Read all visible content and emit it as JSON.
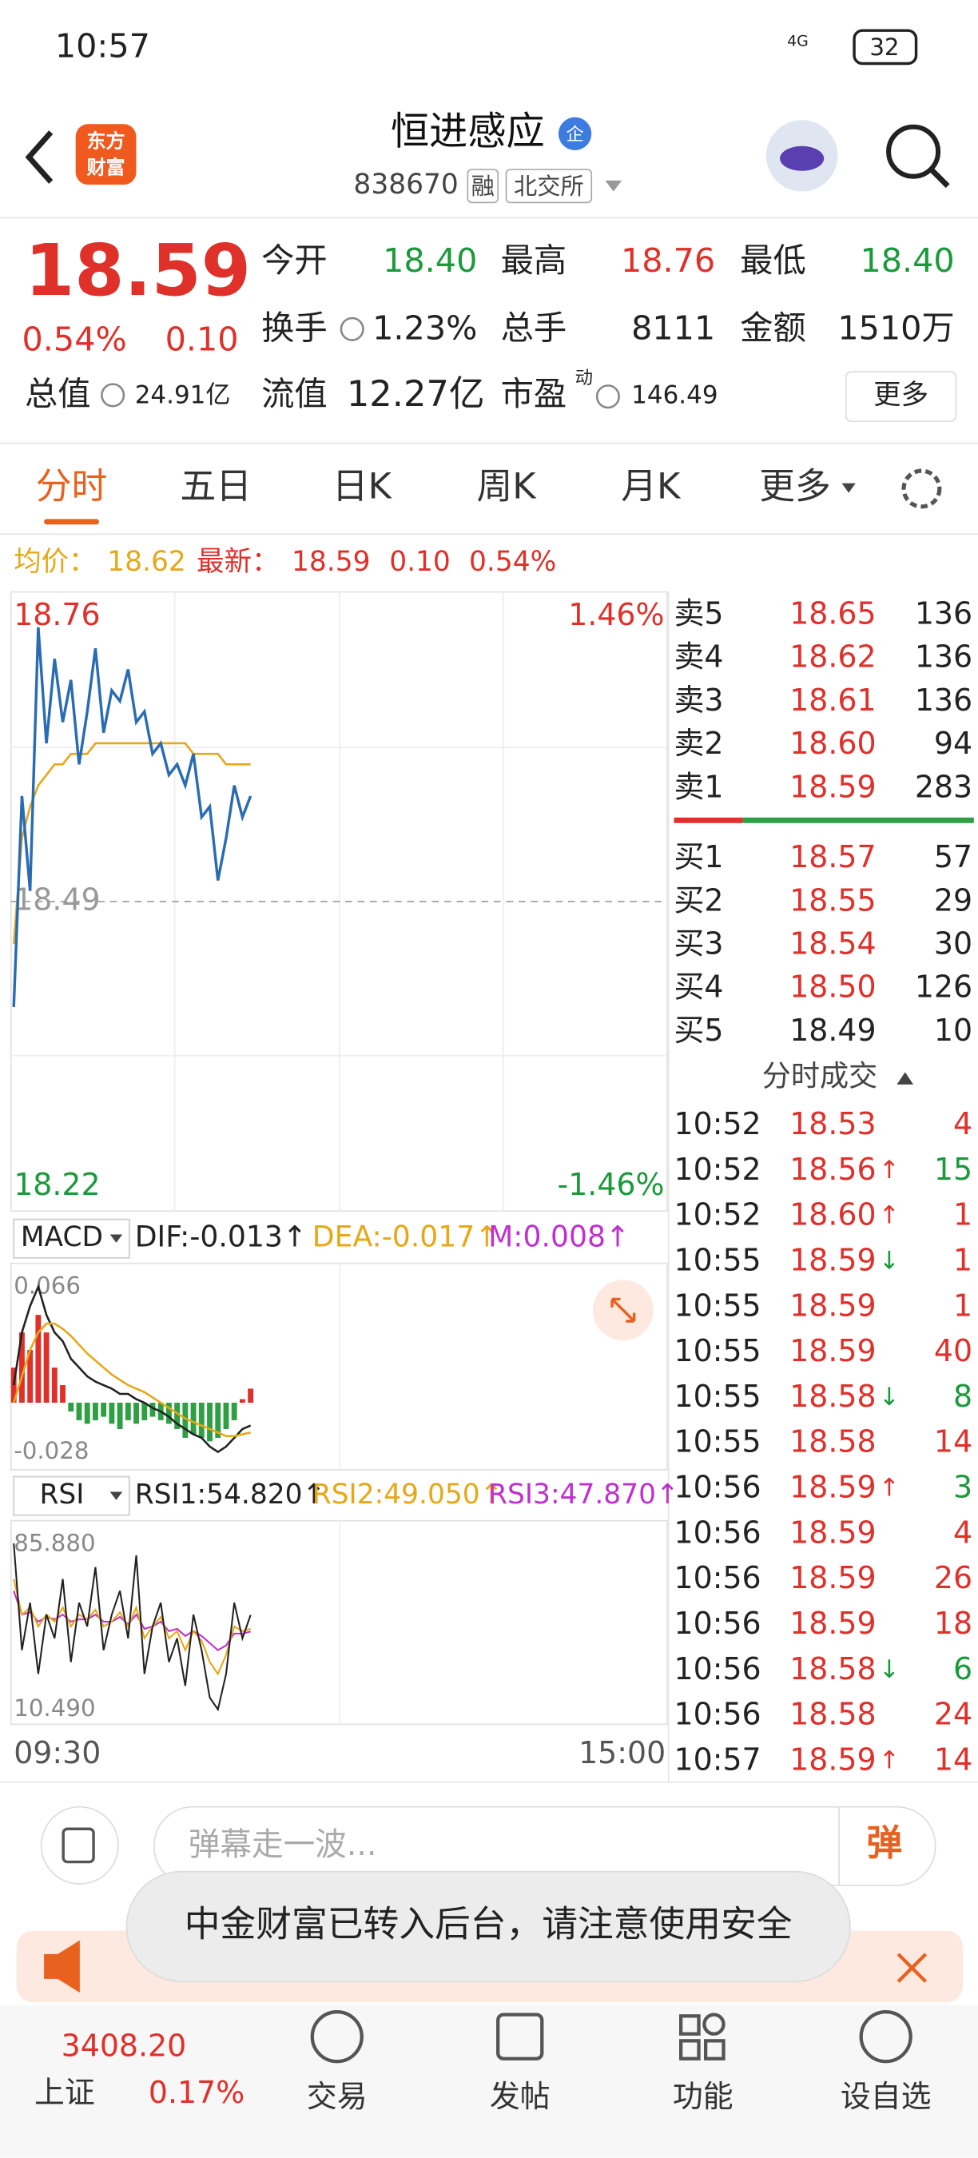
{
  "status_bar": {
    "time": "10:57",
    "network": "4G",
    "battery": "32"
  },
  "header": {
    "logo": [
      "东方",
      "财富"
    ],
    "name": "恒进感应",
    "badge": "企",
    "code": "838670",
    "tags": [
      "融",
      "北交所"
    ]
  },
  "quote": {
    "price": "18.59",
    "change_pct": "0.54%",
    "change": "0.10",
    "row1": [
      {
        "label": "今开",
        "value": "18.40",
        "color": "green"
      },
      {
        "label": "最高",
        "value": "18.76",
        "color": "red"
      },
      {
        "label": "最低",
        "value": "18.40",
        "color": "green"
      }
    ],
    "row2": [
      {
        "label": "换手",
        "value": "1.23%"
      },
      {
        "label": "总手",
        "value": "8111"
      },
      {
        "label": "金额",
        "value": "1510万"
      }
    ],
    "row3": [
      {
        "label": "总值",
        "value": "24.91亿"
      },
      {
        "label": "流值",
        "value": "12.27亿"
      },
      {
        "label": "市盈",
        "sup": "动",
        "value": "146.49"
      }
    ],
    "more": "更多"
  },
  "tabs": {
    "items": [
      "分时",
      "五日",
      "日K",
      "周K",
      "月K",
      "更多"
    ],
    "active": 0
  },
  "summary": {
    "avg_label": "均价：",
    "avg": "18.62",
    "last_label": "最新：",
    "last": "18.59",
    "change": "0.10",
    "change_pct": "0.54%"
  },
  "intraday": {
    "high": "18.76",
    "low": "18.22",
    "prev_close": "18.49",
    "up_pct": "1.46%",
    "down_pct": "-1.46%",
    "start_time": "09:30",
    "end_time": "15:00",
    "price": [
      18.39,
      18.59,
      18.5,
      18.75,
      18.64,
      18.72,
      18.66,
      18.7,
      18.62,
      18.67,
      18.73,
      18.65,
      18.69,
      18.68,
      18.71,
      18.66,
      18.67,
      18.63,
      18.64,
      18.61,
      18.62,
      18.6,
      18.63,
      18.57,
      18.58,
      18.51,
      18.55,
      18.6,
      18.57,
      18.59
    ],
    "avg": [
      18.45,
      18.55,
      18.58,
      18.6,
      18.61,
      18.62,
      18.62,
      18.63,
      18.63,
      18.63,
      18.64,
      18.64,
      18.64,
      18.64,
      18.64,
      18.64,
      18.64,
      18.64,
      18.64,
      18.64,
      18.64,
      18.64,
      18.63,
      18.63,
      18.63,
      18.63,
      18.62,
      18.62,
      18.62,
      18.62
    ]
  },
  "macd": {
    "name": "MACD",
    "dif_label": "DIF:-0.013↑",
    "dea_label": "DEA:-0.017↑",
    "m_label": "M:0.008↑",
    "max": "0.066",
    "min": "-0.028",
    "dif": [
      0.01,
      0.04,
      0.055,
      0.066,
      0.05,
      0.04,
      0.035,
      0.025,
      0.02,
      0.015,
      0.012,
      0.01,
      0.008,
      0.005,
      0.005,
      0.002,
      0.0,
      -0.003,
      -0.005,
      -0.008,
      -0.012,
      -0.015,
      -0.018,
      -0.02,
      -0.025,
      -0.028,
      -0.025,
      -0.02,
      -0.015,
      -0.013
    ],
    "dea": [
      0.0,
      0.015,
      0.03,
      0.04,
      0.045,
      0.045,
      0.042,
      0.038,
      0.033,
      0.028,
      0.024,
      0.02,
      0.016,
      0.013,
      0.01,
      0.008,
      0.006,
      0.003,
      0.0,
      -0.003,
      -0.006,
      -0.009,
      -0.011,
      -0.013,
      -0.015,
      -0.017,
      -0.019,
      -0.019,
      -0.018,
      -0.017
    ],
    "m": [
      0.02,
      0.04,
      0.03,
      0.05,
      0.04,
      0.02,
      0.01,
      -0.005,
      -0.01,
      -0.012,
      -0.01,
      -0.008,
      -0.012,
      -0.015,
      -0.01,
      -0.012,
      -0.01,
      -0.008,
      -0.01,
      -0.012,
      -0.015,
      -0.02,
      -0.018,
      -0.02,
      -0.022,
      -0.02,
      -0.015,
      -0.01,
      0.002,
      0.008
    ]
  },
  "rsi": {
    "name": "RSI",
    "rsi1_label": "RSI1:54.820↑",
    "rsi2_label": "RSI2:49.050↑",
    "rsi3_label": "RSI3:47.870↑",
    "max": "85.880",
    "min": "10.490",
    "rsi1": [
      85,
      40,
      60,
      30,
      55,
      45,
      70,
      35,
      60,
      50,
      75,
      40,
      55,
      65,
      45,
      80,
      30,
      50,
      60,
      35,
      45,
      25,
      55,
      40,
      20,
      15,
      30,
      60,
      45,
      54.82
    ],
    "rsi2": [
      70,
      55,
      58,
      50,
      55,
      52,
      58,
      50,
      55,
      53,
      57,
      50,
      52,
      56,
      50,
      58,
      45,
      50,
      54,
      45,
      48,
      40,
      48,
      44,
      35,
      30,
      38,
      50,
      48,
      49.05
    ],
    "rsi3": [
      65,
      55,
      56,
      52,
      54,
      53,
      55,
      52,
      53,
      53,
      55,
      52,
      52,
      54,
      51,
      55,
      49,
      50,
      52,
      48,
      49,
      46,
      48,
      46,
      43,
      40,
      42,
      47,
      47,
      47.87
    ]
  },
  "order_book": {
    "asks": [
      {
        "label": "卖5",
        "price": "18.65",
        "volume": "136"
      },
      {
        "label": "卖4",
        "price": "18.62",
        "volume": "136"
      },
      {
        "label": "卖3",
        "price": "18.61",
        "volume": "136"
      },
      {
        "label": "卖2",
        "price": "18.60",
        "volume": "94"
      },
      {
        "label": "卖1",
        "price": "18.59",
        "volume": "283"
      }
    ],
    "bids": [
      {
        "label": "买1",
        "price": "18.57",
        "volume": "57"
      },
      {
        "label": "买2",
        "price": "18.55",
        "volume": "29"
      },
      {
        "label": "买3",
        "price": "18.54",
        "volume": "30"
      },
      {
        "label": "买4",
        "price": "18.50",
        "volume": "126"
      },
      {
        "label": "买5",
        "price": "18.49",
        "volume": "10",
        "price_color": "black"
      }
    ]
  },
  "trades": {
    "title": "分时成交",
    "rows": [
      {
        "time": "10:52",
        "price": "18.53",
        "volume": "4",
        "volume_color": "red"
      },
      {
        "time": "10:52",
        "price": "18.56",
        "arrow": "↑",
        "volume": "15",
        "volume_color": "green"
      },
      {
        "time": "10:52",
        "price": "18.60",
        "arrow": "↑",
        "volume": "1",
        "volume_color": "red"
      },
      {
        "time": "10:55",
        "price": "18.59",
        "arrow": "↓",
        "volume": "1",
        "volume_color": "red"
      },
      {
        "time": "10:55",
        "price": "18.59",
        "volume": "1",
        "volume_color": "red"
      },
      {
        "time": "10:55",
        "price": "18.59",
        "volume": "40",
        "volume_color": "red"
      },
      {
        "time": "10:55",
        "price": "18.58",
        "arrow": "↓",
        "volume": "8",
        "volume_color": "green"
      },
      {
        "time": "10:55",
        "price": "18.58",
        "volume": "14",
        "volume_color": "red"
      },
      {
        "time": "10:56",
        "price": "18.59",
        "arrow": "↑",
        "volume": "3",
        "volume_color": "green"
      },
      {
        "time": "10:56",
        "price": "18.59",
        "volume": "4",
        "volume_color": "red"
      },
      {
        "time": "10:56",
        "price": "18.59",
        "volume": "26",
        "volume_color": "red"
      },
      {
        "time": "10:56",
        "price": "18.59",
        "volume": "18",
        "volume_color": "red"
      },
      {
        "time": "10:56",
        "price": "18.58",
        "arrow": "↓",
        "volume": "6",
        "volume_color": "green"
      },
      {
        "time": "10:56",
        "price": "18.58",
        "volume": "24",
        "volume_color": "red"
      },
      {
        "time": "10:57",
        "price": "18.59",
        "arrow": "↑",
        "volume": "14",
        "volume_color": "red"
      }
    ]
  },
  "danmu": {
    "placeholder": "弹幕走一波...",
    "button": "弹"
  },
  "toast": "中金财富已转入后台，请注意使用安全",
  "index": {
    "name": "上证",
    "value": "3408.20",
    "change_pct": "0.17%"
  },
  "nav": [
    "交易",
    "发帖",
    "功能",
    "设自选"
  ]
}
